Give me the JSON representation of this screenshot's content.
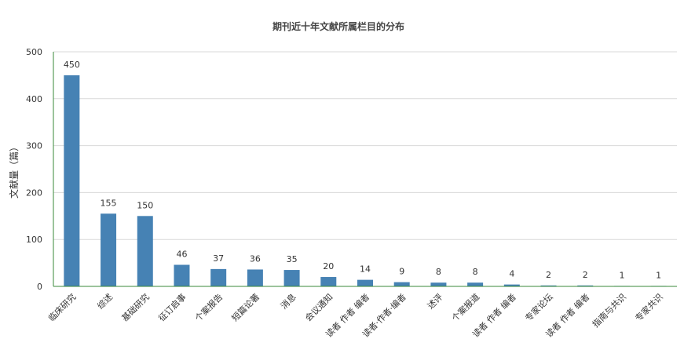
{
  "chart_data": {
    "type": "bar",
    "title": "期刊近十年文献所属栏目的分布",
    "ylabel": "文献量（篇）",
    "xlabel": "",
    "ylim": [
      0,
      500
    ],
    "yticks": [
      0,
      100,
      200,
      300,
      400,
      500
    ],
    "grid": true,
    "bar_color": "#4682b4",
    "categories": [
      "临床研究",
      "综述",
      "基础研究",
      "征订启事",
      "个案报告",
      "短篇论著",
      "消息",
      "会议通知",
      "读者 作者 编者",
      "读者·作者·编者",
      "述评",
      "个案报道",
      "读者 作者 编者",
      "专家论坛",
      "读者 作者 编者",
      "指南与共识",
      "专家共识"
    ],
    "values": [
      450,
      155,
      150,
      46,
      37,
      36,
      35,
      20,
      14,
      9,
      8,
      8,
      4,
      2,
      2,
      1,
      1
    ]
  }
}
